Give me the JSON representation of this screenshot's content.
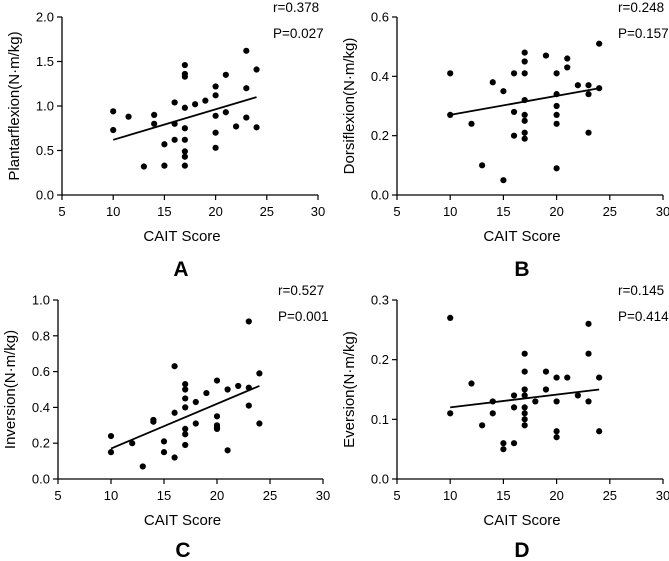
{
  "figure_title": "",
  "chart_data": [
    {
      "type": "scatter",
      "panel_label": "A",
      "xlabel": "CAIT Score",
      "ylabel": "Plantarflexion(N·m/kg)",
      "xlim": [
        5,
        30
      ],
      "ylim": [
        0,
        2.0
      ],
      "xticks": [
        5,
        10,
        15,
        20,
        25,
        30
      ],
      "yticks": [
        0.0,
        0.5,
        1.0,
        1.5,
        2.0
      ],
      "y_decimals": 1,
      "r_text": "r=0.378",
      "p_text": "P=0.027",
      "regression_line": {
        "x": [
          10,
          24
        ],
        "y": [
          0.62,
          1.1
        ]
      },
      "points": {
        "x": [
          10,
          10,
          11.5,
          13,
          14,
          14,
          15,
          15,
          16,
          16,
          16,
          17,
          17,
          17,
          17,
          17,
          17,
          17,
          17,
          17,
          18,
          19,
          20,
          20,
          20,
          20,
          20,
          21,
          21,
          22,
          23,
          23,
          23,
          24,
          24
        ],
        "y": [
          0.94,
          0.73,
          0.88,
          0.32,
          0.8,
          0.9,
          0.33,
          0.57,
          0.62,
          0.8,
          1.04,
          1.46,
          1.36,
          1.33,
          0.98,
          0.75,
          0.62,
          0.49,
          0.43,
          0.33,
          1.02,
          1.06,
          1.22,
          1.12,
          0.89,
          0.7,
          0.53,
          1.35,
          0.93,
          0.77,
          1.62,
          1.2,
          0.87,
          1.41,
          0.76
        ]
      }
    },
    {
      "type": "scatter",
      "panel_label": "B",
      "xlabel": "CAIT Score",
      "ylabel": "Dorsiflexion(N·m/kg)",
      "xlim": [
        5,
        30
      ],
      "ylim": [
        0,
        0.6
      ],
      "xticks": [
        5,
        10,
        15,
        20,
        25,
        30
      ],
      "yticks": [
        0.0,
        0.2,
        0.4,
        0.6
      ],
      "y_decimals": 1,
      "r_text": "r=0.248",
      "p_text": "P=0.157",
      "regression_line": {
        "x": [
          10,
          24
        ],
        "y": [
          0.27,
          0.36
        ]
      },
      "points": {
        "x": [
          10,
          10,
          12,
          13,
          14,
          15,
          15,
          16,
          16,
          16,
          17,
          17,
          17,
          17,
          17,
          17,
          17,
          17,
          19,
          20,
          20,
          20,
          20,
          20,
          20,
          21,
          21,
          22,
          23,
          23,
          23,
          24,
          24
        ],
        "y": [
          0.41,
          0.27,
          0.24,
          0.1,
          0.38,
          0.35,
          0.05,
          0.41,
          0.28,
          0.2,
          0.48,
          0.45,
          0.41,
          0.32,
          0.27,
          0.25,
          0.21,
          0.19,
          0.47,
          0.41,
          0.34,
          0.3,
          0.27,
          0.24,
          0.09,
          0.46,
          0.43,
          0.37,
          0.37,
          0.34,
          0.21,
          0.51,
          0.36
        ]
      }
    },
    {
      "type": "scatter",
      "panel_label": "C",
      "xlabel": "CAIT Score",
      "ylabel": "Inversion(N·m/kg)",
      "xlim": [
        5,
        30
      ],
      "ylim": [
        0,
        1.0
      ],
      "xticks": [
        5,
        10,
        15,
        20,
        25,
        30
      ],
      "yticks": [
        0.0,
        0.2,
        0.4,
        0.6,
        0.8,
        1.0
      ],
      "y_decimals": 1,
      "r_text": "r=0.527",
      "p_text": "P=0.001",
      "regression_line": {
        "x": [
          10,
          24
        ],
        "y": [
          0.17,
          0.52
        ]
      },
      "points": {
        "x": [
          10,
          10,
          12,
          13,
          14,
          14,
          15,
          15,
          16,
          16,
          16,
          17,
          17,
          17,
          17,
          17,
          17,
          17,
          18,
          18,
          19,
          20,
          20,
          20,
          20,
          20,
          21,
          21,
          22,
          23,
          23,
          23,
          24,
          24
        ],
        "y": [
          0.24,
          0.15,
          0.2,
          0.07,
          0.33,
          0.32,
          0.21,
          0.15,
          0.63,
          0.37,
          0.12,
          0.53,
          0.5,
          0.45,
          0.4,
          0.28,
          0.25,
          0.19,
          0.43,
          0.31,
          0.48,
          0.55,
          0.35,
          0.3,
          0.29,
          0.28,
          0.5,
          0.16,
          0.52,
          0.88,
          0.51,
          0.41,
          0.59,
          0.31
        ]
      }
    },
    {
      "type": "scatter",
      "panel_label": "D",
      "xlabel": "CAIT Score",
      "ylabel": "Eversion(N·m/kg)",
      "xlim": [
        5,
        30
      ],
      "ylim": [
        0,
        0.3
      ],
      "xticks": [
        5,
        10,
        15,
        20,
        25,
        30
      ],
      "yticks": [
        0.0,
        0.1,
        0.2,
        0.3
      ],
      "y_decimals": 1,
      "r_text": "r=0.145",
      "p_text": "P=0.414",
      "regression_line": {
        "x": [
          10,
          24
        ],
        "y": [
          0.12,
          0.15
        ]
      },
      "points": {
        "x": [
          10,
          10,
          12,
          13,
          14,
          14,
          15,
          15,
          16,
          16,
          16,
          17,
          17,
          17,
          17,
          17,
          17,
          17,
          17,
          18,
          19,
          19,
          20,
          20,
          20,
          20,
          21,
          22,
          23,
          23,
          23,
          24,
          24
        ],
        "y": [
          0.27,
          0.11,
          0.16,
          0.09,
          0.13,
          0.11,
          0.06,
          0.05,
          0.14,
          0.12,
          0.06,
          0.21,
          0.18,
          0.15,
          0.14,
          0.12,
          0.11,
          0.1,
          0.09,
          0.13,
          0.18,
          0.15,
          0.17,
          0.13,
          0.08,
          0.07,
          0.17,
          0.14,
          0.26,
          0.21,
          0.13,
          0.17,
          0.08
        ]
      }
    }
  ]
}
